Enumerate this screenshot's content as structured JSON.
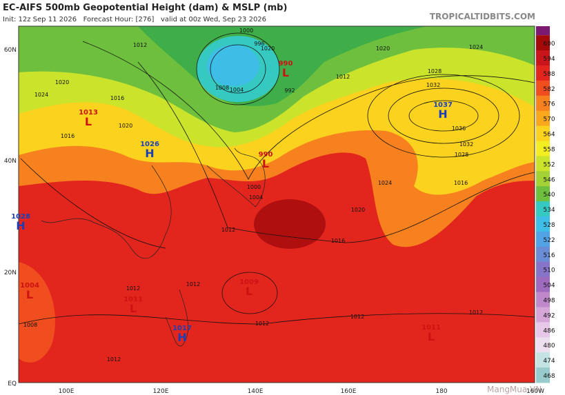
{
  "header": {
    "title": "EC-AIFS 500mb Geopotential Height (dam) & MSLP (mb)",
    "subtitle": "Init: 12z Sep 11 2026   Forecast Hour: [276]   valid at 00z Wed, Sep 23 2026",
    "source": "TROPICALTIDBITS.COM"
  },
  "colorbar": {
    "levels": [
      600,
      594,
      588,
      582,
      576,
      570,
      564,
      558,
      552,
      546,
      540,
      534,
      528,
      522,
      516,
      510,
      504,
      498,
      492,
      486,
      480,
      474,
      468
    ],
    "colors": [
      "#a50a0a",
      "#c8141a",
      "#e3261d",
      "#f04e1f",
      "#f7801f",
      "#f9a81e",
      "#fbd21d",
      "#f2ee22",
      "#cbe42b",
      "#a2d235",
      "#6dbf3d",
      "#35c9c2",
      "#3ebde6",
      "#52a3e6",
      "#6a8bd6",
      "#8574c8",
      "#9f6bbf",
      "#bf88cb",
      "#d7a6d9",
      "#e8c8e8",
      "#eedff0",
      "#c4e4e4",
      "#98cccc"
    ],
    "top_color": "#7b1a70"
  },
  "axes": {
    "lat": [
      "60N",
      "40N",
      "20N",
      "EQ"
    ],
    "lon": [
      "100E",
      "120E",
      "140E",
      "160E",
      "180",
      "160W"
    ]
  },
  "centers": [
    {
      "type": "L",
      "value": "990"
    },
    {
      "type": "L",
      "value": "1013"
    },
    {
      "type": "H",
      "value": "1026"
    },
    {
      "type": "H",
      "value": "1037"
    },
    {
      "type": "L",
      "value": "990"
    },
    {
      "type": "H",
      "value": "1028"
    },
    {
      "type": "L",
      "value": "1004"
    },
    {
      "type": "L",
      "value": "1011"
    },
    {
      "type": "L",
      "value": "1009"
    },
    {
      "type": "H",
      "value": "1017"
    },
    {
      "type": "L",
      "value": "1011"
    }
  ],
  "contour_labels": [
    "1012",
    "1020",
    "1024",
    "1016",
    "1020",
    "1016",
    "1000",
    "996",
    "1008",
    "1004",
    "992",
    "1012",
    "1020",
    "1020",
    "1024",
    "1028",
    "1032",
    "1036",
    "1032",
    "1028",
    "1016",
    "1024",
    "1020",
    "1016",
    "1012",
    "1012",
    "1012",
    "1012",
    "1012",
    "1012",
    "1008",
    "1012",
    "1000",
    "1004"
  ],
  "watermark": "MangMua.VN"
}
